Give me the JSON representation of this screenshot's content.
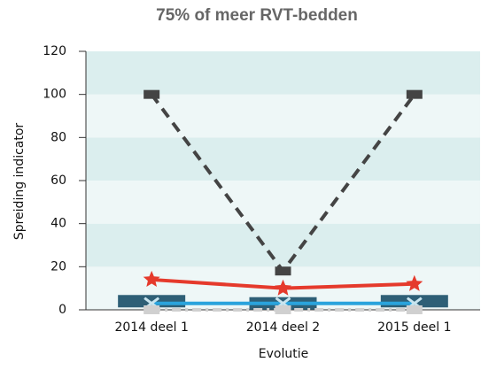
{
  "chart_data": {
    "type": "line",
    "title": "75% of meer RVT-bedden",
    "x_label": "Evolutie",
    "y_label": "Spreiding indicator",
    "categories": [
      "2014 deel 1",
      "2014 deel 2",
      "2015 deel 1"
    ],
    "series": [
      {
        "color": "#444444",
        "line_style": "dash",
        "marker": "square",
        "values": [
          100,
          18,
          100
        ]
      },
      {
        "color": "#e53a2c",
        "line_style": "solid",
        "marker": "star",
        "values": [
          14,
          10,
          12
        ]
      },
      {
        "color": "#2e5f76",
        "line_style": "none",
        "marker": "wide-rect",
        "values": [
          4,
          3,
          4
        ]
      },
      {
        "color": "#2aa3dc",
        "line_style": "solid",
        "marker": "x",
        "values": [
          3,
          3,
          3
        ]
      },
      {
        "color": "#d0d0d0",
        "line_style": "dashdot",
        "marker": "square",
        "values": [
          0,
          0,
          0
        ]
      }
    ],
    "ylim": [
      0,
      120
    ],
    "yticks": [
      0,
      20,
      40,
      60,
      80,
      100,
      120
    ],
    "band_colors": [
      "#eef7f7",
      "#dbeeee"
    ],
    "grid": false
  }
}
